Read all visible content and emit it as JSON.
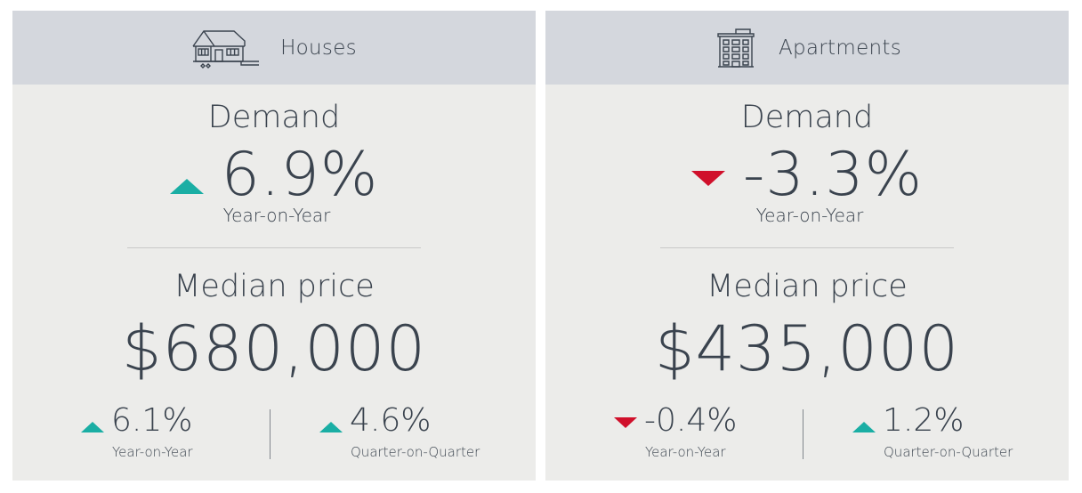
{
  "colors": {
    "up": "#1aaea4",
    "down": "#d0102b",
    "header_bg": "#d4d7dd",
    "card_bg": "#ececea",
    "text": "#3a434e"
  },
  "houses": {
    "title": "Houses",
    "icon": "house-icon",
    "demand_label": "Demand",
    "demand_direction": "up",
    "demand_value": "6.9%",
    "demand_period": "Year-on-Year",
    "median_label": "Median price",
    "median_value": "$680,000",
    "yoy": {
      "direction": "up",
      "value": "6.1%",
      "label": "Year-on-Year"
    },
    "qoq": {
      "direction": "up",
      "value": "4.6%",
      "label": "Quarter-on-Quarter"
    }
  },
  "apartments": {
    "title": "Apartments",
    "icon": "apartment-building-icon",
    "demand_label": "Demand",
    "demand_direction": "down",
    "demand_value": "-3.3%",
    "demand_period": "Year-on-Year",
    "median_label": "Median price",
    "median_value": "$435,000",
    "yoy": {
      "direction": "down",
      "value": "-0.4%",
      "label": "Year-on-Year"
    },
    "qoq": {
      "direction": "up",
      "value": "1.2%",
      "label": "Quarter-on-Quarter"
    }
  }
}
